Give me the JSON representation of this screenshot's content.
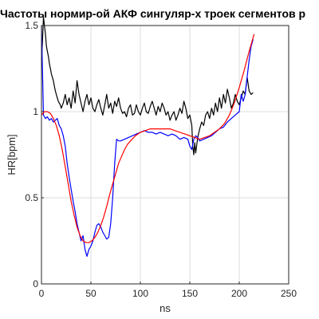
{
  "chart_data": {
    "type": "line",
    "title": "Частоты нормир-ой АКФ сингуляр-х троек сегментов р",
    "xlabel": "ns",
    "ylabel": "HR[bpm]",
    "xlim": [
      0,
      250
    ],
    "ylim": [
      0,
      1.5
    ],
    "xticks": [
      0,
      50,
      100,
      150,
      200,
      250
    ],
    "yticks": [
      0,
      0.5,
      1,
      1.5
    ],
    "xtick_labels": [
      "0",
      "50",
      "100",
      "150",
      "200",
      "250"
    ],
    "ytick_labels": [
      "0",
      "0.5",
      "1",
      "1.5"
    ],
    "grid": true,
    "series": [
      {
        "color": "#000000",
        "x": [
          0,
          1,
          2,
          3,
          4,
          5,
          6,
          7,
          8,
          9,
          10,
          11,
          12,
          13,
          14,
          15,
          16,
          17,
          18,
          19,
          20,
          22,
          24,
          26,
          28,
          30,
          32,
          34,
          36,
          38,
          40,
          42,
          44,
          46,
          48,
          50,
          52,
          54,
          56,
          58,
          60,
          62,
          64,
          66,
          68,
          70,
          72,
          74,
          76,
          78,
          80,
          82,
          84,
          86,
          88,
          90,
          92,
          94,
          96,
          98,
          100,
          102,
          104,
          106,
          108,
          110,
          112,
          114,
          116,
          118,
          120,
          122,
          124,
          126,
          128,
          130,
          132,
          134,
          136,
          138,
          140,
          142,
          144,
          146,
          148,
          150,
          152,
          153,
          154,
          155,
          156,
          158,
          160,
          162,
          164,
          166,
          168,
          170,
          172,
          174,
          176,
          178,
          180,
          182,
          184,
          186,
          188,
          190,
          192,
          194,
          196,
          198,
          200,
          202,
          204,
          206,
          208,
          210,
          212,
          214
        ],
        "y": [
          1.3,
          1.4,
          1.55,
          1.5,
          1.45,
          1.38,
          1.35,
          1.32,
          1.28,
          1.25,
          1.22,
          1.2,
          1.18,
          1.15,
          1.12,
          1.1,
          1.08,
          1.06,
          1.05,
          1.04,
          1.02,
          1.05,
          1.1,
          1.04,
          1.08,
          1.02,
          1.12,
          1.05,
          1.18,
          1.1,
          1.05,
          1.0,
          1.06,
          1.1,
          1.04,
          1.08,
          1.02,
          1.0,
          1.04,
          1.07,
          1.02,
          0.98,
          1.04,
          1.1,
          1.02,
          1.05,
          0.99,
          1.06,
          1.03,
          1.08,
          1.02,
          0.99,
          1.0,
          0.97,
          1.02,
          1.04,
          0.98,
          0.99,
          1.04,
          1.0,
          0.98,
          1.02,
          1.05,
          1.0,
          0.99,
          1.03,
          1.06,
          1.02,
          0.98,
          1.03,
          1.0,
          1.05,
          1.02,
          0.98,
          1.0,
          0.95,
          0.98,
          1.0,
          0.95,
          0.98,
          1.02,
          0.99,
          1.06,
          1.02,
          0.96,
          0.98,
          0.92,
          0.8,
          0.75,
          0.82,
          0.76,
          0.85,
          0.9,
          0.94,
          0.92,
          0.98,
          1.0,
          0.96,
          1.02,
          0.98,
          1.05,
          1.0,
          1.08,
          1.02,
          1.1,
          1.05,
          1.13,
          1.08,
          1.02,
          1.05,
          1.1,
          1.06,
          1.04,
          1.08,
          1.12,
          1.1,
          1.2,
          1.12,
          1.1,
          1.11
        ]
      },
      {
        "color": "#0000ff",
        "x": [
          0,
          2,
          4,
          6,
          8,
          10,
          12,
          14,
          16,
          18,
          20,
          22,
          24,
          26,
          28,
          30,
          32,
          34,
          36,
          38,
          40,
          42,
          44,
          46,
          48,
          50,
          52,
          54,
          56,
          58,
          60,
          62,
          64,
          66,
          68,
          70,
          72,
          74,
          76,
          78,
          80,
          84,
          88,
          92,
          96,
          100,
          104,
          108,
          112,
          116,
          120,
          124,
          128,
          132,
          136,
          140,
          144,
          148,
          150,
          152,
          154,
          156,
          158,
          160,
          164,
          168,
          172,
          176,
          180,
          184,
          188,
          192,
          196,
          200,
          202,
          204,
          206,
          208,
          210,
          212,
          214
        ],
        "y": [
          1.5,
          0.98,
          0.96,
          0.97,
          0.95,
          0.96,
          0.94,
          0.95,
          0.96,
          0.92,
          0.9,
          0.86,
          0.8,
          0.7,
          0.62,
          0.55,
          0.48,
          0.42,
          0.35,
          0.3,
          0.25,
          0.28,
          0.2,
          0.16,
          0.2,
          0.22,
          0.25,
          0.3,
          0.34,
          0.35,
          0.33,
          0.3,
          0.28,
          0.26,
          0.27,
          0.35,
          0.5,
          0.7,
          0.84,
          0.83,
          0.83,
          0.84,
          0.85,
          0.86,
          0.87,
          0.88,
          0.89,
          0.88,
          0.88,
          0.87,
          0.88,
          0.87,
          0.86,
          0.87,
          0.86,
          0.84,
          0.85,
          0.84,
          0.8,
          0.78,
          0.84,
          0.86,
          0.85,
          0.83,
          0.84,
          0.85,
          0.86,
          0.88,
          0.9,
          0.91,
          0.94,
          0.96,
          0.98,
          1.0,
          1.1,
          1.06,
          1.1,
          1.2,
          1.3,
          1.38,
          1.42
        ]
      },
      {
        "color": "#ff0000",
        "x": [
          0,
          3,
          6,
          9,
          12,
          15,
          18,
          21,
          24,
          27,
          30,
          33,
          36,
          39,
          42,
          45,
          48,
          51,
          54,
          57,
          60,
          63,
          66,
          69,
          72,
          75,
          78,
          81,
          84,
          87,
          90,
          95,
          100,
          105,
          110,
          115,
          120,
          125,
          130,
          135,
          140,
          145,
          150,
          155,
          160,
          165,
          170,
          175,
          180,
          185,
          190,
          195,
          200,
          205,
          210,
          215
        ],
        "y": [
          0.98,
          1.0,
          1.0,
          0.99,
          0.96,
          0.92,
          0.86,
          0.78,
          0.68,
          0.58,
          0.48,
          0.4,
          0.33,
          0.28,
          0.25,
          0.24,
          0.24,
          0.25,
          0.27,
          0.3,
          0.34,
          0.39,
          0.45,
          0.52,
          0.58,
          0.64,
          0.7,
          0.74,
          0.78,
          0.81,
          0.83,
          0.86,
          0.88,
          0.89,
          0.9,
          0.9,
          0.9,
          0.9,
          0.9,
          0.89,
          0.88,
          0.87,
          0.86,
          0.85,
          0.84,
          0.85,
          0.86,
          0.88,
          0.9,
          0.93,
          0.98,
          1.05,
          1.14,
          1.24,
          1.35,
          1.45
        ]
      }
    ]
  }
}
